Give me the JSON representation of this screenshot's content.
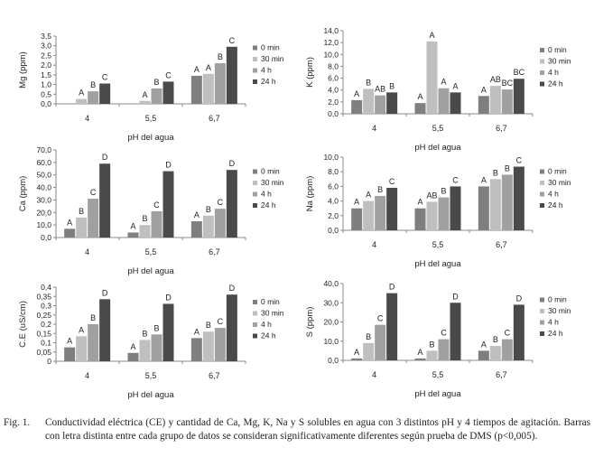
{
  "figure": {
    "caption_label": "Fig. 1.",
    "caption_text": "Conductividad eléctrica (CE) y cantidad de Ca, Mg, K, Na y S solubles en agua con 3 distintos pH y 4 tiempos de agitación. Barras con letra distinta entre cada grupo de datos se consideran significativamente diferentes según prueba de DMS (p<0,005)."
  },
  "colors": {
    "s0": "#7f7f7f",
    "s1": "#bfbfbf",
    "s2": "#a0a0a0",
    "s3": "#4a4a4a",
    "axis": "#888888"
  },
  "chart_data": [
    {
      "type": "bar",
      "ylabel": "Mg (ppm)",
      "xlabel": "pH del agua",
      "categories": [
        "4",
        "5,5",
        "6,7"
      ],
      "yticks": [
        "0,0",
        "0,5",
        "1,0",
        "1,5",
        "2,0",
        "2,5",
        "3,0",
        "3,5"
      ],
      "ylim": [
        0,
        3.5
      ],
      "legend": "right",
      "series": [
        {
          "name": "0 min",
          "values": [
            0.0,
            0.0,
            1.45
          ],
          "letters": [
            "",
            "",
            "A"
          ]
        },
        {
          "name": "30 min",
          "values": [
            0.25,
            0.15,
            1.55
          ],
          "letters": [
            "A",
            "A",
            "A"
          ]
        },
        {
          "name": "4 h",
          "values": [
            0.65,
            0.8,
            2.1
          ],
          "letters": [
            "B",
            "B",
            "B"
          ]
        },
        {
          "name": "24 h",
          "values": [
            1.05,
            1.15,
            2.95
          ],
          "letters": [
            "C",
            "C",
            "C"
          ]
        }
      ]
    },
    {
      "type": "bar",
      "ylabel": "K (ppm)",
      "xlabel": "pH del agua",
      "categories": [
        "4",
        "5,5",
        "6,7"
      ],
      "yticks": [
        "0,0",
        "2,0",
        "4,0",
        "6,0",
        "8,0",
        "10,0",
        "12,0",
        "14,0"
      ],
      "ylim": [
        0,
        14
      ],
      "legend": "right",
      "series": [
        {
          "name": "0 min",
          "values": [
            2.3,
            1.8,
            3.0
          ],
          "letters": [
            "A",
            "A",
            "A"
          ]
        },
        {
          "name": "30 min",
          "values": [
            4.2,
            12.2,
            4.7
          ],
          "letters": [
            "B",
            "A",
            "AB"
          ]
        },
        {
          "name": "4 h",
          "values": [
            3.1,
            4.3,
            4.1
          ],
          "letters": [
            "AB",
            "A",
            "BC"
          ]
        },
        {
          "name": "24 h",
          "values": [
            3.6,
            3.6,
            5.9
          ],
          "letters": [
            "B",
            "A",
            "BC"
          ]
        }
      ]
    },
    {
      "type": "bar",
      "ylabel": "Ca (ppm)",
      "xlabel": "pH del agua",
      "categories": [
        "4",
        "5,5",
        "6,7"
      ],
      "yticks": [
        "0,0",
        "10,0",
        "20,0",
        "30,0",
        "40,0",
        "50,0",
        "60,0",
        "70,0"
      ],
      "ylim": [
        0,
        70
      ],
      "legend": "right",
      "series": [
        {
          "name": "0 min",
          "values": [
            7,
            4,
            13
          ],
          "letters": [
            "A",
            "A",
            "A"
          ]
        },
        {
          "name": "30 min",
          "values": [
            16,
            10,
            17.5
          ],
          "letters": [
            "B",
            "B",
            "B"
          ]
        },
        {
          "name": "4 h",
          "values": [
            31,
            21,
            23
          ],
          "letters": [
            "C",
            "C",
            "C"
          ]
        },
        {
          "name": "24 h",
          "values": [
            59,
            53,
            54
          ],
          "letters": [
            "D",
            "D",
            "D"
          ]
        }
      ]
    },
    {
      "type": "bar",
      "ylabel": "Na (ppm)",
      "xlabel": "pH del agua",
      "categories": [
        "4",
        "5,5",
        "6,7"
      ],
      "yticks": [
        "0,0",
        "2,0",
        "4,0",
        "6,0",
        "8,0",
        "10,0"
      ],
      "ylim": [
        0,
        10
      ],
      "legend": "right",
      "series": [
        {
          "name": "0 min",
          "values": [
            3.0,
            3.0,
            6.0
          ],
          "letters": [
            "A",
            "A",
            "A"
          ]
        },
        {
          "name": "30 min",
          "values": [
            4.0,
            3.9,
            7.0
          ],
          "letters": [
            "A",
            "AB",
            "B"
          ]
        },
        {
          "name": "4 h",
          "values": [
            4.7,
            4.5,
            7.6
          ],
          "letters": [
            "B",
            "B",
            "B"
          ]
        },
        {
          "name": "24 h",
          "values": [
            5.8,
            6.0,
            8.7
          ],
          "letters": [
            "C",
            "C",
            "C"
          ]
        }
      ]
    },
    {
      "type": "bar",
      "ylabel": "C.E (uS/cm)",
      "xlabel": "pH del agua",
      "categories": [
        "4",
        "5,5",
        "6,7"
      ],
      "yticks": [
        "0",
        "0,05",
        "0,1",
        "0,15",
        "0,2",
        "0,25",
        "0,3",
        "0,35",
        "0,4"
      ],
      "ylim": [
        0,
        0.4
      ],
      "legend": "right",
      "series": [
        {
          "name": "0 min",
          "values": [
            0.075,
            0.045,
            0.125
          ],
          "letters": [
            "A",
            "A",
            "A"
          ]
        },
        {
          "name": "30 min",
          "values": [
            0.135,
            0.115,
            0.16
          ],
          "letters": [
            "A",
            "B",
            "B"
          ]
        },
        {
          "name": "4 h",
          "values": [
            0.2,
            0.145,
            0.18
          ],
          "letters": [
            "B",
            "B",
            "C"
          ]
        },
        {
          "name": "24 h",
          "values": [
            0.335,
            0.31,
            0.36
          ],
          "letters": [
            "D",
            "D",
            "D"
          ]
        }
      ]
    },
    {
      "type": "bar",
      "ylabel": "S (ppm)",
      "xlabel": "pH del agua",
      "categories": [
        "4",
        "5,5",
        "6,7"
      ],
      "yticks": [
        "0,0",
        "10,0",
        "20,0",
        "30,0",
        "40,0"
      ],
      "ylim": [
        0,
        40
      ],
      "legend": "right",
      "series": [
        {
          "name": "0 min",
          "values": [
            1,
            1,
            5
          ],
          "letters": [
            "A",
            "A",
            "A"
          ]
        },
        {
          "name": "30 min",
          "values": [
            9,
            5,
            7.5
          ],
          "letters": [
            "B",
            "B",
            "B"
          ]
        },
        {
          "name": "4 h",
          "values": [
            18.5,
            11,
            11
          ],
          "letters": [
            "C",
            "C",
            "C"
          ]
        },
        {
          "name": "24 h",
          "values": [
            35,
            30,
            29
          ],
          "letters": [
            "D",
            "D",
            "D"
          ]
        }
      ]
    }
  ]
}
